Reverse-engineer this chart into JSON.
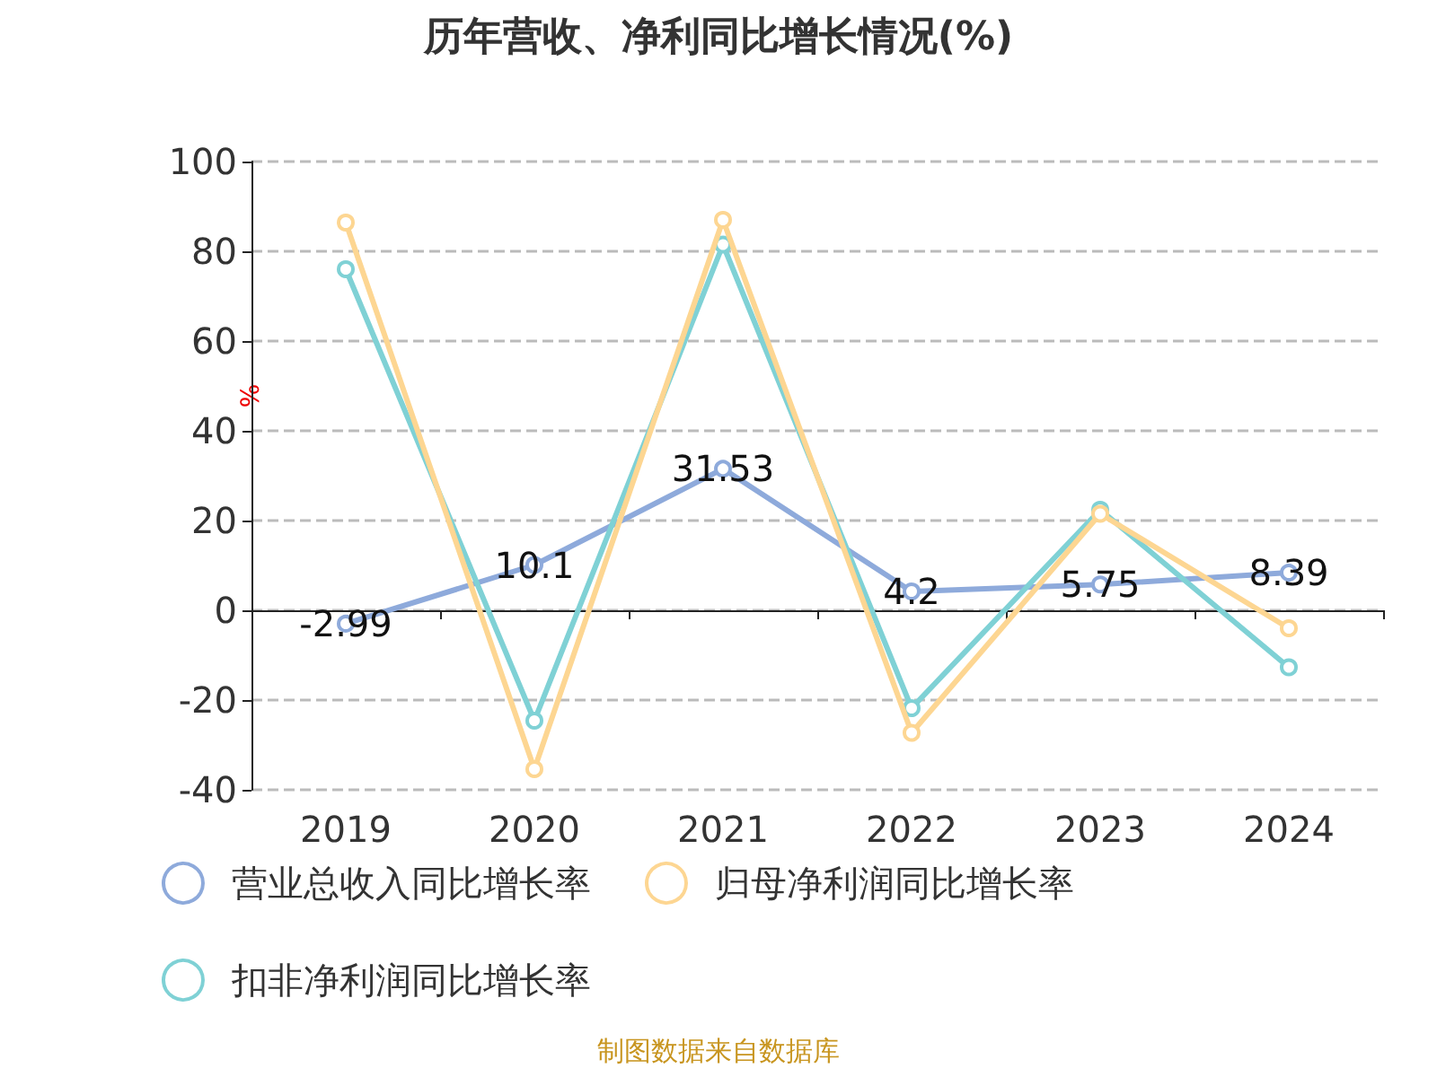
{
  "chart_data": {
    "type": "line",
    "title": "历年营收、净利同比增长情况(%)",
    "ylabel": "%",
    "categories": [
      "2019",
      "2020",
      "2021",
      "2022",
      "2023",
      "2024"
    ],
    "series": [
      {
        "name": "营业总收入同比增长率",
        "color": "#8eaadb",
        "values": [
          -2.99,
          10.1,
          31.53,
          4.2,
          5.75,
          8.39
        ],
        "value_labels": [
          "-2.99",
          "10.1",
          "31.53",
          "4.2",
          "5.75",
          "8.39"
        ]
      },
      {
        "name": "归母净利润同比增长率",
        "color": "#fdd692",
        "values": [
          86.4,
          -35.4,
          87,
          -27.3,
          21.5,
          -4
        ]
      },
      {
        "name": "扣非净利润同比增长率",
        "color": "#7fd1d5",
        "values": [
          76,
          -24.6,
          81.5,
          -21.8,
          22.4,
          -12.7
        ]
      }
    ],
    "ylim": [
      -40,
      100
    ],
    "yticks": [
      -40,
      -20,
      0,
      20,
      40,
      60,
      80,
      100
    ],
    "grid": "y",
    "legend": "bottom",
    "marker": "circle",
    "line_style": "solid",
    "annotations": [
      "制图数据来自数据库"
    ]
  }
}
